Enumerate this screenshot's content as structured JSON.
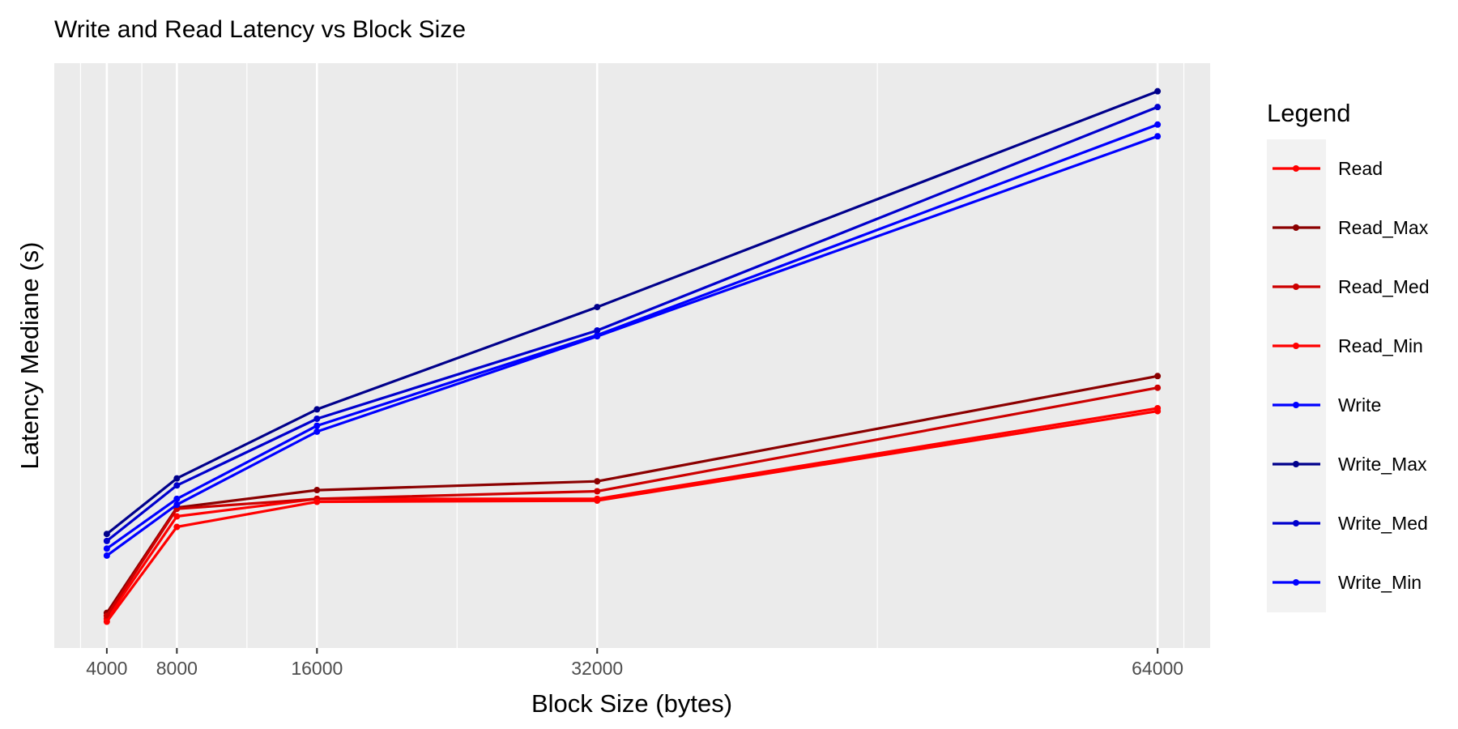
{
  "chart_data": {
    "type": "line",
    "title": "Write and Read Latency vs Block Size",
    "xlabel": "Block Size (bytes)",
    "ylabel": "Latency Mediane (s)",
    "x": [
      4000,
      8000,
      16000,
      32000,
      64000
    ],
    "x_ticks": [
      4000,
      8000,
      16000,
      32000,
      64000
    ],
    "xlim": [
      1000,
      67000
    ],
    "ylim": [
      0,
      1
    ],
    "y_ticks_shown": false,
    "grid": true,
    "legend": {
      "title": "Legend",
      "position": "right"
    },
    "series": [
      {
        "name": "Read",
        "color": "#ff0000",
        "values": [
          0.05,
          0.225,
          0.255,
          0.255,
          0.41
        ]
      },
      {
        "name": "Read_Max",
        "color": "#8b0000",
        "values": [
          0.06,
          0.24,
          0.27,
          0.285,
          0.465
        ]
      },
      {
        "name": "Read_Med",
        "color": "#cd0000",
        "values": [
          0.055,
          0.238,
          0.255,
          0.268,
          0.445
        ]
      },
      {
        "name": "Read_Min",
        "color": "#ff0000",
        "values": [
          0.045,
          0.207,
          0.25,
          0.252,
          0.405
        ]
      },
      {
        "name": "Write",
        "color": "#0000ff",
        "values": [
          0.17,
          0.255,
          0.38,
          0.535,
          0.895
        ]
      },
      {
        "name": "Write_Max",
        "color": "#00008b",
        "values": [
          0.195,
          0.29,
          0.408,
          0.583,
          0.952
        ]
      },
      {
        "name": "Write_Med",
        "color": "#0000cd",
        "values": [
          0.183,
          0.278,
          0.392,
          0.543,
          0.925
        ]
      },
      {
        "name": "Write_Min",
        "color": "#0000ff",
        "values": [
          0.158,
          0.245,
          0.37,
          0.533,
          0.875
        ]
      }
    ]
  }
}
